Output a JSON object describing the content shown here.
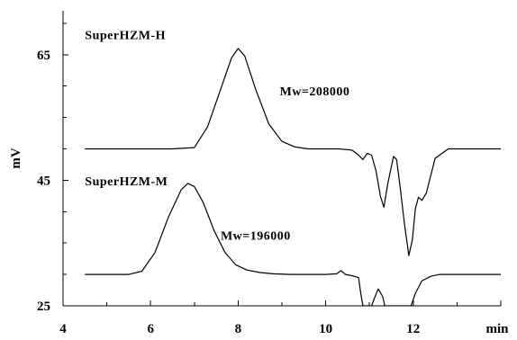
{
  "chart_data": {
    "type": "line",
    "title": "",
    "xlabel": "min",
    "ylabel": "mV",
    "xlim": [
      4,
      14
    ],
    "ylim": [
      25,
      72
    ],
    "xticks": [
      4,
      6,
      8,
      10,
      12
    ],
    "yticks": [
      25,
      45,
      65
    ],
    "grid": false,
    "legend": "none",
    "annotations": [
      {
        "id": "label_h",
        "text": "SuperHZM-H",
        "x": 4.5,
        "y": 67.5
      },
      {
        "id": "mw_h",
        "text": "Mw=208000",
        "x": 8.95,
        "y": 58.5
      },
      {
        "id": "label_m",
        "text": "SuperHZM-M",
        "x": 4.5,
        "y": 44.2
      },
      {
        "id": "mw_m",
        "text": "Mw=196000",
        "x": 7.6,
        "y": 35.5
      }
    ],
    "series": [
      {
        "x": [
          4.5,
          5.5,
          6.5,
          7.0,
          7.3,
          7.6,
          7.85,
          8.0,
          8.15,
          8.4,
          8.7,
          9.0,
          9.3,
          9.6,
          10.0,
          10.3,
          10.6,
          10.75,
          10.85,
          10.95,
          11.05,
          11.15,
          11.25,
          11.33,
          11.42,
          11.55,
          11.62,
          11.7,
          11.8,
          11.9,
          11.98,
          12.05,
          12.12,
          12.2,
          12.3,
          12.5,
          12.8,
          14.0
        ],
        "values": [
          50.0,
          50.0,
          50.0,
          50.2,
          53.5,
          59.5,
          64.5,
          66.0,
          64.8,
          59.5,
          54.0,
          51.2,
          50.3,
          50.0,
          50.0,
          50.0,
          49.8,
          49.0,
          48.3,
          49.3,
          49.0,
          46.5,
          42.5,
          40.7,
          44.5,
          48.8,
          48.3,
          44.0,
          38.0,
          33.0,
          35.5,
          40.5,
          42.3,
          41.8,
          43.0,
          48.5,
          50.0,
          50.0
        ]
      },
      {
        "x": [
          4.5,
          5.5,
          5.8,
          6.1,
          6.4,
          6.7,
          6.85,
          7.0,
          7.2,
          7.45,
          7.7,
          7.95,
          8.2,
          8.5,
          8.8,
          9.2,
          9.6,
          10.0,
          10.25,
          10.35,
          10.45,
          10.6,
          10.75,
          10.8,
          10.85,
          11.05,
          11.1,
          11.2,
          11.3,
          11.35,
          11.4,
          11.6,
          11.8,
          11.9,
          11.95,
          12.05,
          12.2,
          12.4,
          12.6,
          14.0
        ],
        "values": [
          30.0,
          30.0,
          30.5,
          33.5,
          39.0,
          43.5,
          44.5,
          44.0,
          41.5,
          37.0,
          33.5,
          31.5,
          30.7,
          30.3,
          30.1,
          30.0,
          30.0,
          30.0,
          30.1,
          30.6,
          30.0,
          29.8,
          29.5,
          27.0,
          25.0,
          25.0,
          26.0,
          27.7,
          26.5,
          25.0,
          25.0,
          25.0,
          25.0,
          25.0,
          25.0,
          27.0,
          29.0,
          29.7,
          30.0,
          30.0
        ]
      }
    ]
  }
}
